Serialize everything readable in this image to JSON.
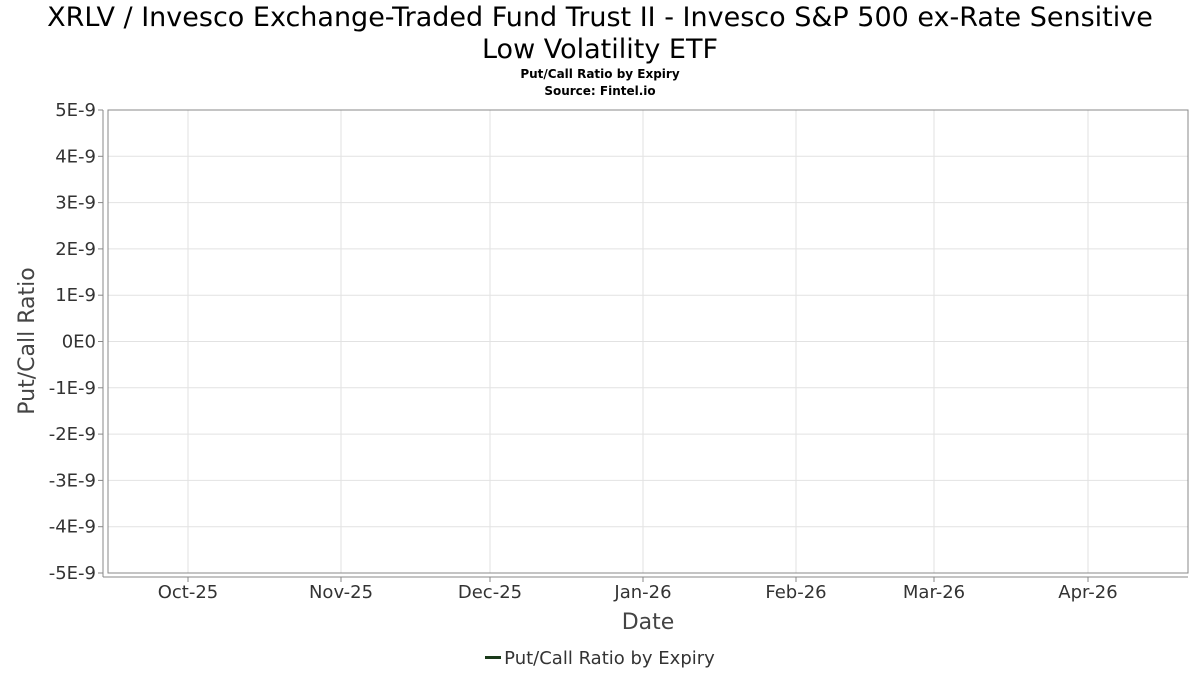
{
  "chart_data": {
    "type": "line",
    "title_line1": "XRLV / Invesco Exchange-Traded Fund Trust II - Invesco S&P 500 ex-Rate Sensitive",
    "title_line2": "Low Volatility ETF",
    "subtitle": "Put/Call Ratio by Expiry",
    "source": "Source: Fintel.io",
    "xlabel": "Date",
    "ylabel": "Put/Call Ratio",
    "x_ticks": [
      "Oct-25",
      "Nov-25",
      "Dec-25",
      "Jan-26",
      "Feb-26",
      "Mar-26",
      "Apr-26"
    ],
    "y_ticks": [
      "5E-9",
      "4E-9",
      "3E-9",
      "2E-9",
      "1E-9",
      "0E0",
      "-1E-9",
      "-2E-9",
      "-3E-9",
      "-4E-9",
      "-5E-9"
    ],
    "ylim": [
      -5e-09,
      5e-09
    ],
    "grid": true,
    "legend_position": "bottom",
    "series": [
      {
        "name": "Put/Call Ratio by Expiry",
        "color": "#1a3a1a",
        "values": []
      }
    ]
  }
}
